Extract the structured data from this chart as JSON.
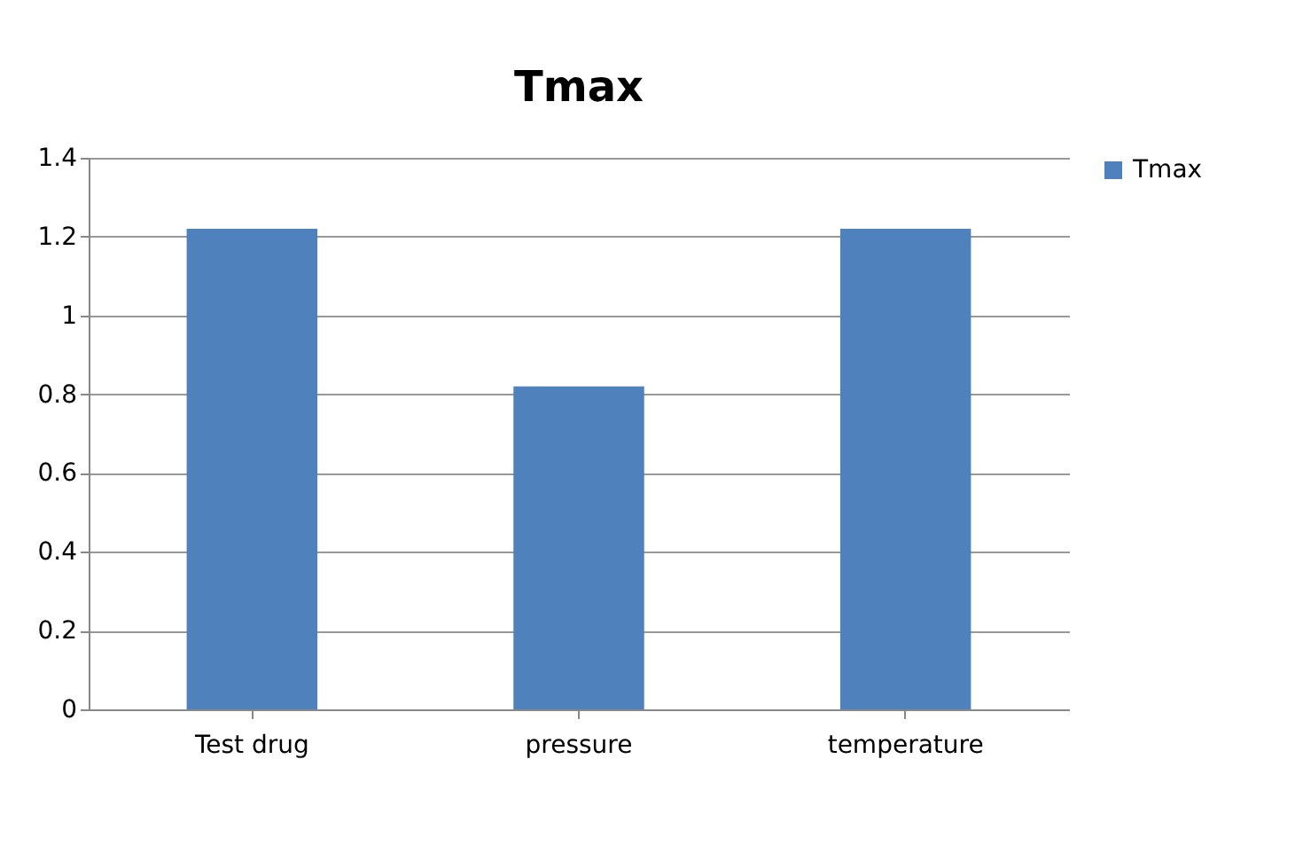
{
  "chart_data": {
    "type": "bar",
    "title": "Tmax",
    "categories": [
      "Test drug",
      "pressure",
      "temperature"
    ],
    "series": [
      {
        "name": "Tmax",
        "color": "#4f81bd",
        "values": [
          1.22,
          0.82,
          1.22
        ]
      }
    ],
    "ylim": [
      0,
      1.4
    ],
    "yticks": [
      0,
      0.2,
      0.4,
      0.6,
      0.8,
      1,
      1.2,
      1.4
    ],
    "grid": "y",
    "legend": "right"
  }
}
